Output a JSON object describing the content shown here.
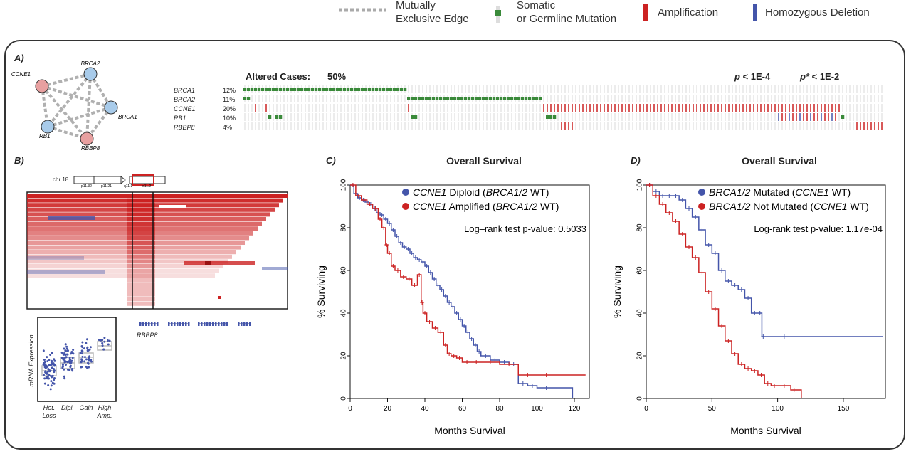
{
  "legend": {
    "edge": "Mutually\nExclusive Edge",
    "edge_l1": "Mutually",
    "edge_l2": "Exclusive Edge",
    "mut_l1": "Somatic",
    "mut_l2": "or Germline Mutation",
    "amp": "Amplification",
    "del": "Homozygous Deletion",
    "colors": {
      "edge": "#aaaaaa",
      "mutation": "#3a8a3a",
      "amp": "#cc2222",
      "del": "#4455aa"
    }
  },
  "panelA": {
    "label": "A)",
    "nodes": [
      {
        "name": "CCNE1",
        "type": "amp"
      },
      {
        "name": "BRCA2",
        "type": "normal"
      },
      {
        "name": "BRCA1",
        "type": "normal"
      },
      {
        "name": "RB1",
        "type": "normal"
      },
      {
        "name": "RBBP8",
        "type": "amp"
      }
    ],
    "altered_label": "Altered Cases:",
    "altered_value": "50%",
    "p1": "p < 1E-4",
    "p1_italic": "p",
    "p1_rest": " < 1E-4",
    "p2_italic": "p*",
    "p2_rest": " < 1E-2",
    "genes": [
      {
        "name": "BRCA1",
        "pct": "12%"
      },
      {
        "name": "BRCA2",
        "pct": "11%"
      },
      {
        "name": "CCNE1",
        "pct": "20%"
      },
      {
        "name": "RB1",
        "pct": "10%"
      },
      {
        "name": "RBBP8",
        "pct": "4%"
      }
    ]
  },
  "panelB": {
    "label": "B)",
    "chr": "chr 18",
    "bands": [
      "p11.32",
      "p11.21",
      "q11.1",
      "q11.2"
    ],
    "gene": "RBBP8",
    "ylabel": "mRNA Expression",
    "categories": [
      "Het.\nLoss",
      "Dipl.",
      "Gain",
      "High\nAmp."
    ],
    "cat_lines": [
      [
        "Het.",
        "Loss"
      ],
      [
        "Dipl."
      ],
      [
        "Gain"
      ],
      [
        "High",
        "Amp."
      ]
    ]
  },
  "chart_data": [
    {
      "type": "line",
      "panel": "C)",
      "title": "Overall Survival",
      "xlabel": "Months Survival",
      "ylabel": "% Surviving",
      "xlim": [
        0,
        128
      ],
      "ylim": [
        0,
        100
      ],
      "xticks": [
        0,
        20,
        40,
        60,
        80,
        100,
        120
      ],
      "yticks": [
        0,
        20,
        40,
        60,
        80,
        100
      ],
      "annotation": "Log–rank test p-value:  0.5033",
      "series": [
        {
          "name_italic": "CCNE1",
          "name_rest": " Diploid (",
          "name_italic2": "BRCA1/2",
          "name_end": " WT)",
          "color": "#4455aa",
          "x": [
            0,
            2,
            4,
            6,
            8,
            10,
            12,
            14,
            16,
            18,
            20,
            22,
            24,
            26,
            28,
            30,
            32,
            34,
            36,
            38,
            40,
            42,
            44,
            46,
            48,
            50,
            52,
            54,
            56,
            58,
            60,
            62,
            64,
            66,
            68,
            70,
            75,
            80,
            85,
            90,
            95,
            100,
            110,
            119
          ],
          "y": [
            100,
            96,
            94,
            93,
            92,
            91,
            89,
            87,
            86,
            84,
            82,
            79,
            76,
            73,
            71,
            70,
            68,
            66,
            65,
            64,
            62,
            59,
            56,
            53,
            51,
            48,
            45,
            43,
            40,
            37,
            34,
            31,
            28,
            25,
            22,
            20,
            18,
            17,
            16,
            7,
            6,
            5,
            5,
            0
          ]
        },
        {
          "name_italic": "CCNE1",
          "name_rest": " Amplified (",
          "name_italic2": "BRCA1/2",
          "name_end": " WT)",
          "color": "#cc2222",
          "x": [
            0,
            3,
            6,
            9,
            12,
            15,
            17,
            19,
            20,
            22,
            24,
            27,
            30,
            33,
            36,
            38,
            39,
            41,
            44,
            47,
            50,
            52,
            54,
            57,
            60,
            65,
            70,
            80,
            90,
            100,
            110,
            126
          ],
          "y": [
            100,
            95,
            93,
            91,
            89,
            84,
            80,
            72,
            68,
            62,
            60,
            57,
            56,
            53,
            58,
            45,
            40,
            36,
            33,
            31,
            25,
            21,
            20,
            19,
            17,
            17,
            17,
            16,
            11,
            11,
            11,
            11
          ]
        }
      ]
    },
    {
      "type": "line",
      "panel": "D)",
      "title": "Overall Survival",
      "xlabel": "Months Survival",
      "ylabel": "% Surviving",
      "xlim": [
        0,
        182
      ],
      "ylim": [
        0,
        100
      ],
      "xticks": [
        0,
        50,
        100,
        150
      ],
      "yticks": [
        0,
        20,
        40,
        60,
        80,
        100
      ],
      "annotation": "Log-rank test p-value:  1.17e-04",
      "series": [
        {
          "name_italic": "BRCA1/2",
          "name_rest": " Mutated (",
          "name_italic2": "CCNE1",
          "name_end": " WT)",
          "color": "#4455aa",
          "x": [
            0,
            5,
            10,
            15,
            20,
            25,
            30,
            35,
            40,
            45,
            50,
            55,
            60,
            65,
            70,
            75,
            80,
            85,
            88,
            90,
            120,
            180
          ],
          "y": [
            100,
            97,
            95,
            95,
            95,
            93,
            89,
            85,
            79,
            72,
            68,
            60,
            55,
            53,
            51,
            47,
            40,
            40,
            29,
            29,
            29,
            29
          ]
        },
        {
          "name_italic": "BRCA1/2",
          "name_rest": " Not Mutated (",
          "name_italic2": "CCNE1",
          "name_end": " WT)",
          "color": "#cc2222",
          "x": [
            0,
            5,
            10,
            15,
            20,
            25,
            30,
            35,
            40,
            45,
            50,
            55,
            60,
            65,
            70,
            75,
            80,
            85,
            90,
            95,
            100,
            110,
            115,
            118
          ],
          "y": [
            100,
            95,
            91,
            87,
            83,
            77,
            71,
            66,
            59,
            50,
            42,
            34,
            27,
            21,
            16,
            14,
            13,
            11,
            7,
            6,
            6,
            4,
            4,
            0
          ]
        }
      ]
    }
  ]
}
